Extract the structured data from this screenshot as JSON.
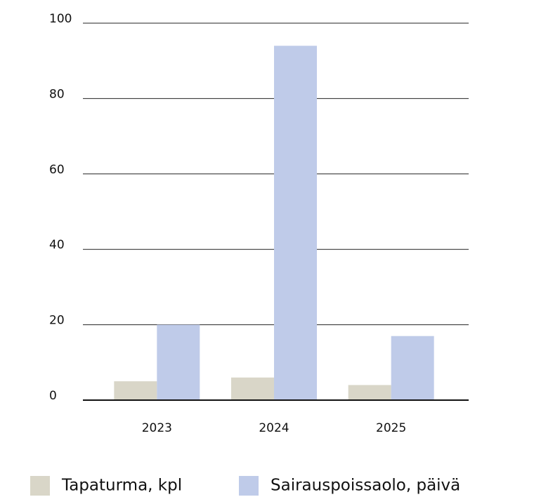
{
  "chart_data": {
    "type": "bar",
    "categories": [
      "2023",
      "2024",
      "2025"
    ],
    "series": [
      {
        "name": "Tapaturma, kpl",
        "color": "#d9d6c8",
        "values": [
          5,
          6,
          4
        ]
      },
      {
        "name": "Sairauspoissaolo, päivä",
        "color": "#bfcbe9",
        "values": [
          20,
          94,
          17
        ]
      }
    ],
    "ylim": [
      0,
      100
    ],
    "yticks": [
      0,
      20,
      40,
      60,
      80,
      100
    ],
    "grid": true,
    "legend": "bottom"
  }
}
